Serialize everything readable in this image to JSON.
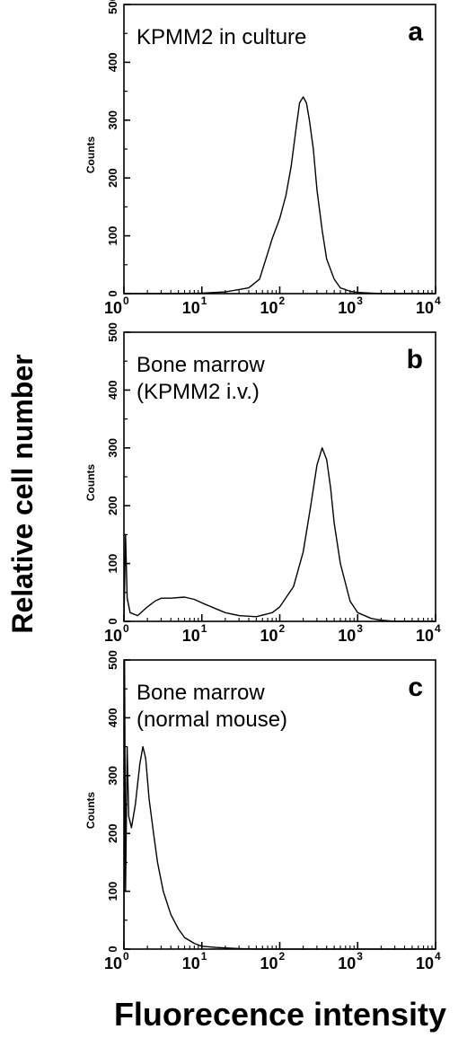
{
  "figure": {
    "ylabel": "Relative cell number",
    "xlabel": "Fluorecence intensity"
  },
  "chart_data": [
    {
      "type": "area",
      "panel_letter": "a",
      "annotation": [
        "KPMM2 in culture"
      ],
      "ylabel": "Counts",
      "xscale": "log",
      "xlim": [
        1,
        10000
      ],
      "ylim": [
        0,
        500
      ],
      "yticks": [
        0,
        100,
        200,
        300,
        400,
        500
      ],
      "xticks": [
        {
          "base": "10",
          "exp": "0"
        },
        {
          "base": "10",
          "exp": "1"
        },
        {
          "base": "10",
          "exp": "2"
        },
        {
          "base": "10",
          "exp": "3"
        },
        {
          "base": "10",
          "exp": "4"
        }
      ],
      "x": [
        1,
        5,
        10,
        20,
        40,
        55,
        70,
        80,
        100,
        120,
        140,
        160,
        180,
        200,
        220,
        240,
        270,
        300,
        350,
        400,
        500,
        600,
        800,
        1000,
        2000,
        10000
      ],
      "y": [
        0,
        0,
        1,
        3,
        10,
        25,
        70,
        95,
        130,
        170,
        220,
        280,
        330,
        340,
        330,
        300,
        250,
        180,
        110,
        60,
        25,
        10,
        4,
        2,
        0,
        0
      ]
    },
    {
      "type": "area",
      "panel_letter": "b",
      "annotation": [
        "Bone marrow",
        "(KPMM2 i.v.)"
      ],
      "ylabel": "Counts",
      "xscale": "log",
      "xlim": [
        1,
        10000
      ],
      "ylim": [
        0,
        500
      ],
      "yticks": [
        0,
        100,
        200,
        300,
        400,
        500
      ],
      "xticks": [
        {
          "base": "10",
          "exp": "0"
        },
        {
          "base": "10",
          "exp": "1"
        },
        {
          "base": "10",
          "exp": "2"
        },
        {
          "base": "10",
          "exp": "3"
        },
        {
          "base": "10",
          "exp": "4"
        }
      ],
      "x": [
        1,
        1.05,
        1.1,
        1.2,
        1.5,
        2,
        2.5,
        3,
        4,
        6,
        8,
        10,
        15,
        20,
        30,
        50,
        80,
        100,
        150,
        200,
        250,
        300,
        350,
        400,
        450,
        500,
        600,
        800,
        1000,
        1500,
        2000,
        3000,
        10000
      ],
      "y": [
        0,
        150,
        40,
        15,
        10,
        25,
        35,
        40,
        40,
        42,
        38,
        32,
        22,
        15,
        10,
        8,
        15,
        25,
        60,
        120,
        200,
        270,
        300,
        280,
        230,
        170,
        100,
        35,
        15,
        5,
        2,
        0,
        0
      ]
    },
    {
      "type": "area",
      "panel_letter": "c",
      "annotation": [
        "Bone marrow",
        "(normal mouse)"
      ],
      "ylabel": "Counts",
      "xscale": "log",
      "xlim": [
        1,
        10000
      ],
      "ylim": [
        0,
        500
      ],
      "yticks": [
        0,
        100,
        200,
        300,
        400,
        500
      ],
      "xticks": [
        {
          "base": "10",
          "exp": "0"
        },
        {
          "base": "10",
          "exp": "1"
        },
        {
          "base": "10",
          "exp": "2"
        },
        {
          "base": "10",
          "exp": "3"
        },
        {
          "base": "10",
          "exp": "4"
        }
      ],
      "x": [
        1,
        1.02,
        1.05,
        1.1,
        1.15,
        1.25,
        1.4,
        1.6,
        1.75,
        1.9,
        2.1,
        2.4,
        2.7,
        3.2,
        4,
        5,
        6,
        8,
        10,
        15,
        20,
        30,
        50,
        10000
      ],
      "y": [
        0,
        500,
        100,
        350,
        230,
        210,
        250,
        320,
        350,
        330,
        260,
        200,
        150,
        100,
        60,
        35,
        20,
        10,
        5,
        3,
        2,
        1,
        0,
        0
      ]
    }
  ]
}
